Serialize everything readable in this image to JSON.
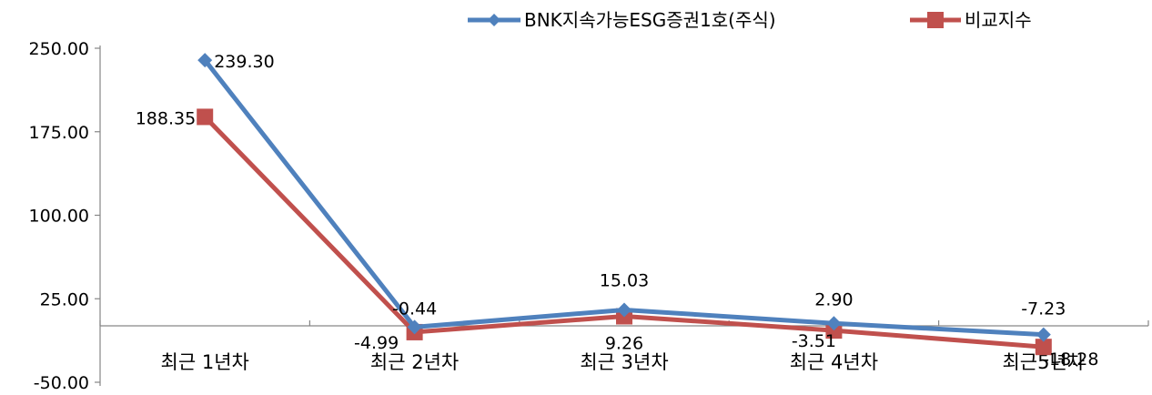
{
  "chart_data": {
    "type": "line",
    "categories": [
      "최근 1년차",
      "최근 2년차",
      "최근 3년차",
      "최근 4년차",
      "최근5년차"
    ],
    "series": [
      {
        "name": "BNK지속가능ESG증권1호(주식)",
        "values": [
          239.3,
          -0.44,
          15.03,
          2.9,
          -7.23
        ],
        "labels": [
          "239.30",
          "-0.44",
          "15.03",
          "2.90",
          "-7.23"
        ],
        "color": "#4F81BD",
        "marker": "diamond"
      },
      {
        "name": "비교지수",
        "values": [
          188.35,
          -4.99,
          9.26,
          -3.51,
          -18.28
        ],
        "labels": [
          "188.35",
          "-4.99",
          "9.26",
          "-3.51",
          "-18.28"
        ],
        "color": "#C0504D",
        "marker": "square"
      }
    ],
    "yticks": [
      "250.00",
      "175.00",
      "100.00",
      "25.00",
      "-50.00"
    ],
    "ylim": [
      -50,
      250
    ],
    "grid": false,
    "legend": "top-right"
  }
}
